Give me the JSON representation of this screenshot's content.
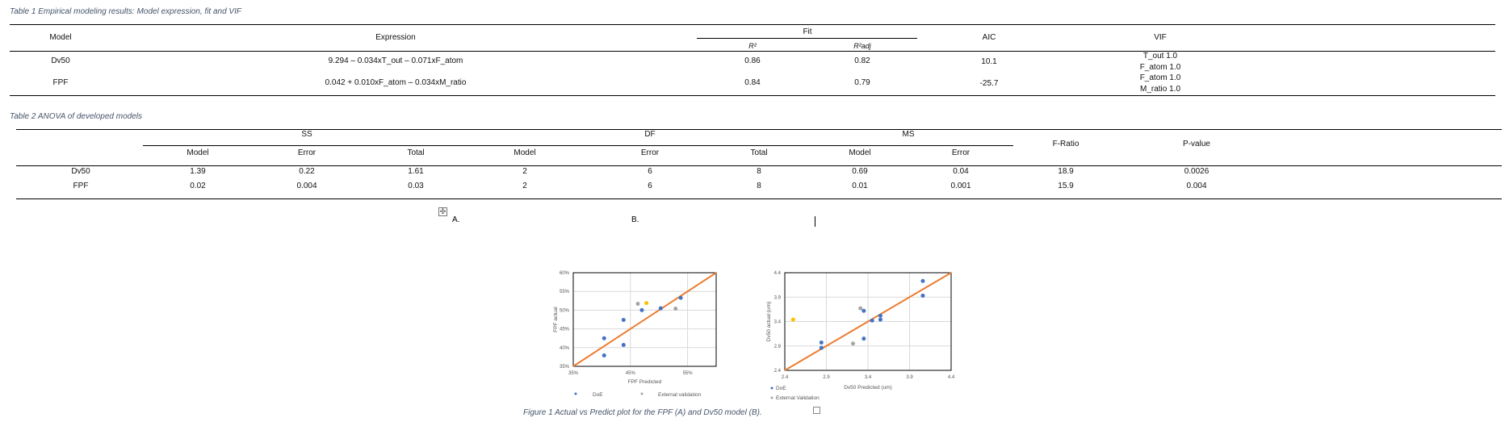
{
  "table1": {
    "caption": "Table 1 Empirical modeling results: Model expression, fit and VIF",
    "headers": {
      "model": "Model",
      "expression": "Expression",
      "fit": "Fit",
      "r2": "R²",
      "r2adj": "R²adj",
      "aic": "AIC",
      "vif": "VIF"
    },
    "rows": [
      {
        "model": "Dv50",
        "expression": "9.294 – 0.034xT_out – 0.071xF_atom",
        "r2": "0.86",
        "r2adj": "0.82",
        "aic": "10.1",
        "vif": [
          "T_out 1.0",
          "F_atom 1.0"
        ]
      },
      {
        "model": "FPF",
        "expression": "0.042 + 0.010xF_atom – 0.034xM_ratio",
        "r2": "0.84",
        "r2adj": "0.79",
        "aic": "-25.7",
        "vif": [
          "F_atom 1.0",
          "M_ratio 1.0"
        ]
      }
    ]
  },
  "table2": {
    "caption": "Table 2 ANOVA of developed models",
    "groups": [
      "SS",
      "DF",
      "MS"
    ],
    "subheaders": [
      "Model",
      "Error",
      "Total",
      "Model",
      "Error",
      "Total",
      "Model",
      "Error"
    ],
    "f_ratio": "F-Ratio",
    "p_value": "P-value",
    "rows": [
      {
        "model": "Dv50",
        "values": [
          "1.39",
          "0.22",
          "1.61",
          "2",
          "6",
          "8",
          "0.69",
          "0.04",
          "18.9",
          "0.0026"
        ]
      },
      {
        "model": "FPF",
        "values": [
          "0.02",
          "0.004",
          "0.03",
          "2",
          "6",
          "8",
          "0.01",
          "0.001",
          "15.9",
          "0.004"
        ]
      }
    ]
  },
  "figure": {
    "caption": "Figure 1 Actual vs Predict plot for the FPF (A) and Dv50 model (B)."
  },
  "chart_data": [
    {
      "type": "scatter",
      "panel_label": "A.",
      "xlabel": "FPF Predicted",
      "ylabel": "FPF actual",
      "xlim": [
        35,
        60
      ],
      "ylim": [
        35,
        60
      ],
      "xticks": [
        "35%",
        "45%",
        "55%"
      ],
      "xtick_values": [
        35,
        45,
        55
      ],
      "yticks": [
        "35%",
        "40%",
        "45%",
        "50%",
        "55%",
        "60%"
      ],
      "ytick_values": [
        35,
        40,
        45,
        50,
        55,
        60
      ],
      "grid": true,
      "series": [
        {
          "name": "DoE",
          "color": "#4472c4",
          "points": [
            [
              40.4,
              42.5
            ],
            [
              40.4,
              37.9
            ],
            [
              43.8,
              47.4
            ],
            [
              43.8,
              40.7
            ],
            [
              47.0,
              50.0
            ],
            [
              50.3,
              50.5
            ],
            [
              53.8,
              53.3
            ]
          ]
        },
        {
          "name": "External validation",
          "color": "#a5a5a5",
          "points": [
            [
              46.3,
              51.7
            ],
            [
              52.9,
              50.4
            ]
          ]
        },
        {
          "color": "#ffc000",
          "points": [
            [
              47.8,
              51.9
            ]
          ]
        }
      ],
      "line": {
        "color": "#ed7d31",
        "from": [
          35,
          35
        ],
        "to": [
          60,
          60
        ]
      },
      "legend": "bottom"
    },
    {
      "type": "scatter",
      "panel_label": "B.",
      "xlabel": "Dv50 Predicted (um)",
      "ylabel": "Dv50 actual (um)",
      "xlim": [
        2.4,
        4.4
      ],
      "ylim": [
        2.4,
        4.4
      ],
      "xticks": [
        "2.4",
        "2.9",
        "3.4",
        "3.9",
        "4.4"
      ],
      "xtick_values": [
        2.4,
        2.9,
        3.4,
        3.9,
        4.4
      ],
      "yticks": [
        "2.4",
        "2.9",
        "3.4",
        "3.9",
        "4.4"
      ],
      "ytick_values": [
        2.4,
        2.9,
        3.4,
        3.9,
        4.4
      ],
      "grid": true,
      "series": [
        {
          "name": "DoE",
          "color": "#4472c4",
          "points": [
            [
              2.84,
              2.97
            ],
            [
              2.84,
              2.86
            ],
            [
              3.35,
              3.62
            ],
            [
              3.35,
              3.05
            ],
            [
              3.45,
              3.42
            ],
            [
              3.55,
              3.52
            ],
            [
              3.55,
              3.44
            ],
            [
              4.06,
              4.23
            ],
            [
              4.06,
              3.93
            ]
          ]
        },
        {
          "name": "External Validation",
          "color": "#a5a5a5",
          "points": [
            [
              3.31,
              3.67
            ],
            [
              3.22,
              2.95
            ]
          ]
        },
        {
          "color": "#ffc000",
          "points": [
            [
              2.5,
              3.44
            ]
          ]
        }
      ],
      "line": {
        "color": "#ed7d31",
        "from": [
          2.4,
          2.4
        ],
        "to": [
          4.4,
          4.4
        ]
      },
      "legend": "bottom-left"
    }
  ]
}
